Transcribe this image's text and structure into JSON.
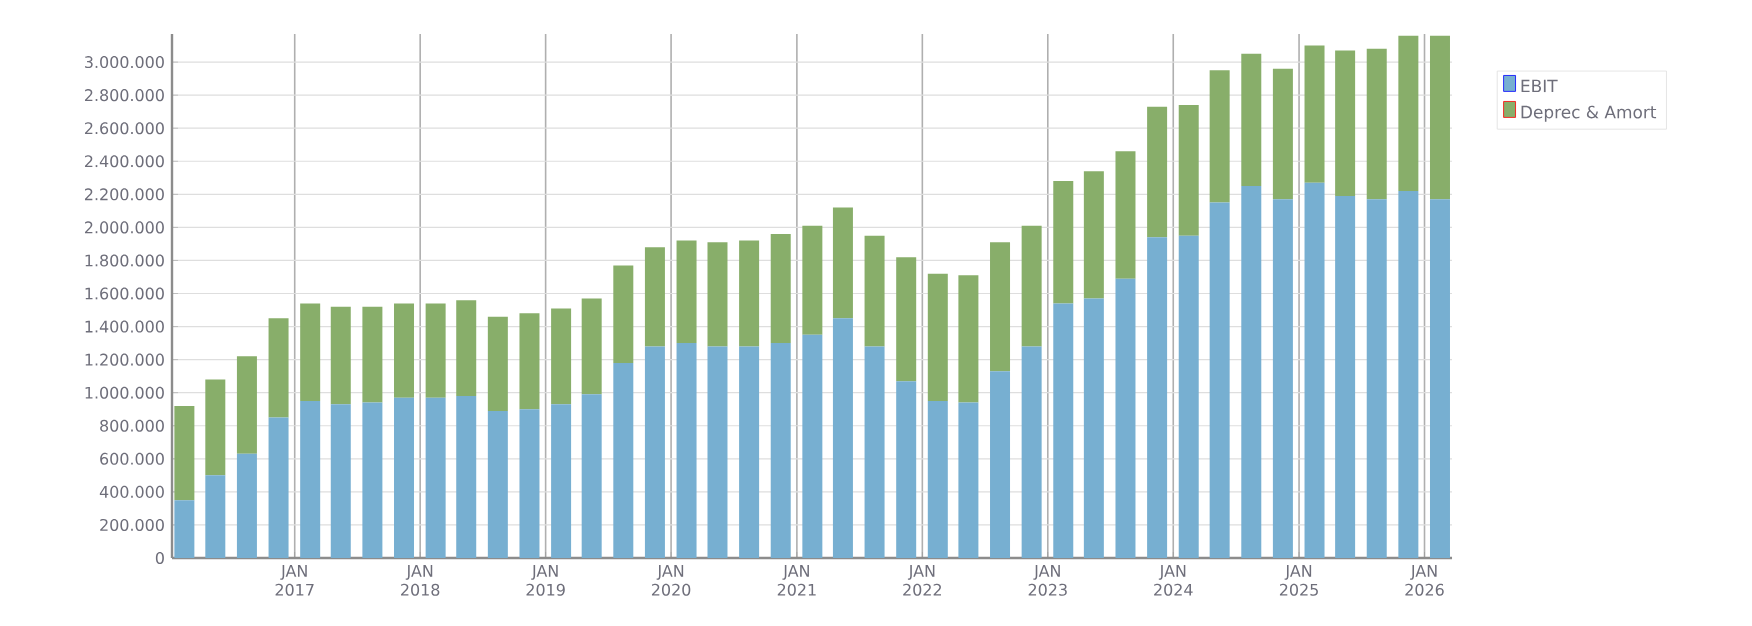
{
  "chart_data": {
    "type": "bar",
    "stacked": true,
    "x": [
      "2016-02-15",
      "2016-05-15",
      "2016-08-15",
      "2016-11-15",
      "2017-02-15",
      "2017-05-15",
      "2017-08-15",
      "2017-11-15",
      "2018-02-15",
      "2018-05-15",
      "2018-08-15",
      "2018-11-15",
      "2019-02-15",
      "2019-05-15",
      "2019-08-15",
      "2019-11-15",
      "2020-02-15",
      "2020-05-15",
      "2020-08-15",
      "2020-11-15",
      "2021-02-15",
      "2021-05-15",
      "2021-08-15",
      "2021-11-15",
      "2022-02-15",
      "2022-05-15",
      "2022-08-15",
      "2022-11-15",
      "2023-02-15",
      "2023-05-15",
      "2023-08-15",
      "2023-11-15",
      "2024-02-15",
      "2024-05-15",
      "2024-08-15",
      "2024-11-15",
      "2025-02-15",
      "2025-05-15",
      "2025-08-15",
      "2025-11-15",
      "2026-02-15"
    ],
    "series": [
      {
        "name": "EBIT",
        "color": "#77afd1",
        "values": [
          350000,
          500000,
          630000,
          850000,
          950000,
          930000,
          940000,
          970000,
          970000,
          980000,
          890000,
          900000,
          930000,
          990000,
          1180000,
          1280000,
          1300000,
          1280000,
          1280000,
          1300000,
          1350000,
          1450000,
          1280000,
          1070000,
          950000,
          940000,
          1130000,
          1280000,
          1540000,
          1570000,
          1690000,
          1940000,
          1950000,
          2150000,
          2250000,
          2170000,
          2270000,
          2190000,
          2170000,
          2220000,
          2170000
        ]
      },
      {
        "name": "Deprec & Amort",
        "color": "#88ae6a",
        "values": [
          570000,
          580000,
          590000,
          600000,
          590000,
          590000,
          580000,
          570000,
          570000,
          580000,
          570000,
          580000,
          580000,
          580000,
          590000,
          600000,
          620000,
          630000,
          640000,
          660000,
          660000,
          670000,
          670000,
          750000,
          770000,
          770000,
          780000,
          730000,
          740000,
          770000,
          770000,
          790000,
          790000,
          800000,
          800000,
          790000,
          830000,
          880000,
          910000,
          940000,
          990000
        ]
      }
    ],
    "xlim": [
      "2016-01-10",
      "2026-03-22"
    ],
    "xticks": [
      {
        "value": "2017-01-01",
        "label": "JAN 2017"
      },
      {
        "value": "2018-01-01",
        "label": "JAN 2018"
      },
      {
        "value": "2019-01-01",
        "label": "JAN 2019"
      },
      {
        "value": "2020-01-01",
        "label": "JAN 2020"
      },
      {
        "value": "2021-01-01",
        "label": "JAN 2021"
      },
      {
        "value": "2022-01-01",
        "label": "JAN 2022"
      },
      {
        "value": "2023-01-01",
        "label": "JAN 2023"
      },
      {
        "value": "2024-01-01",
        "label": "JAN 2024"
      },
      {
        "value": "2025-01-01",
        "label": "JAN 2025"
      },
      {
        "value": "2026-01-01",
        "label": "JAN 2026"
      }
    ],
    "ylim": [
      0,
      3170000
    ],
    "yticks": [
      0,
      {
        "value": 200000,
        "label": "200.000"
      },
      {
        "value": 400000,
        "label": "400.000"
      },
      {
        "value": 600000,
        "label": "600.000"
      },
      {
        "value": 800000,
        "label": "800.000"
      },
      {
        "value": 1000000,
        "label": "1.000.000"
      },
      {
        "value": 1200000,
        "label": "1.200.000"
      },
      {
        "value": 1400000,
        "label": "1.400.000"
      },
      {
        "value": 1600000,
        "label": "1.600.000"
      },
      {
        "value": 1800000,
        "label": "1.800.000"
      },
      {
        "value": 2000000,
        "label": "2.000.000"
      },
      {
        "value": 2200000,
        "label": "2.200.000"
      },
      {
        "value": 2400000,
        "label": "2.400.000"
      },
      {
        "value": 2600000,
        "label": "2.600.000"
      },
      {
        "value": 2800000,
        "label": "2.800.000"
      },
      {
        "value": 3000000,
        "label": "3.000.000"
      }
    ],
    "grid": true,
    "legend": "top right"
  }
}
